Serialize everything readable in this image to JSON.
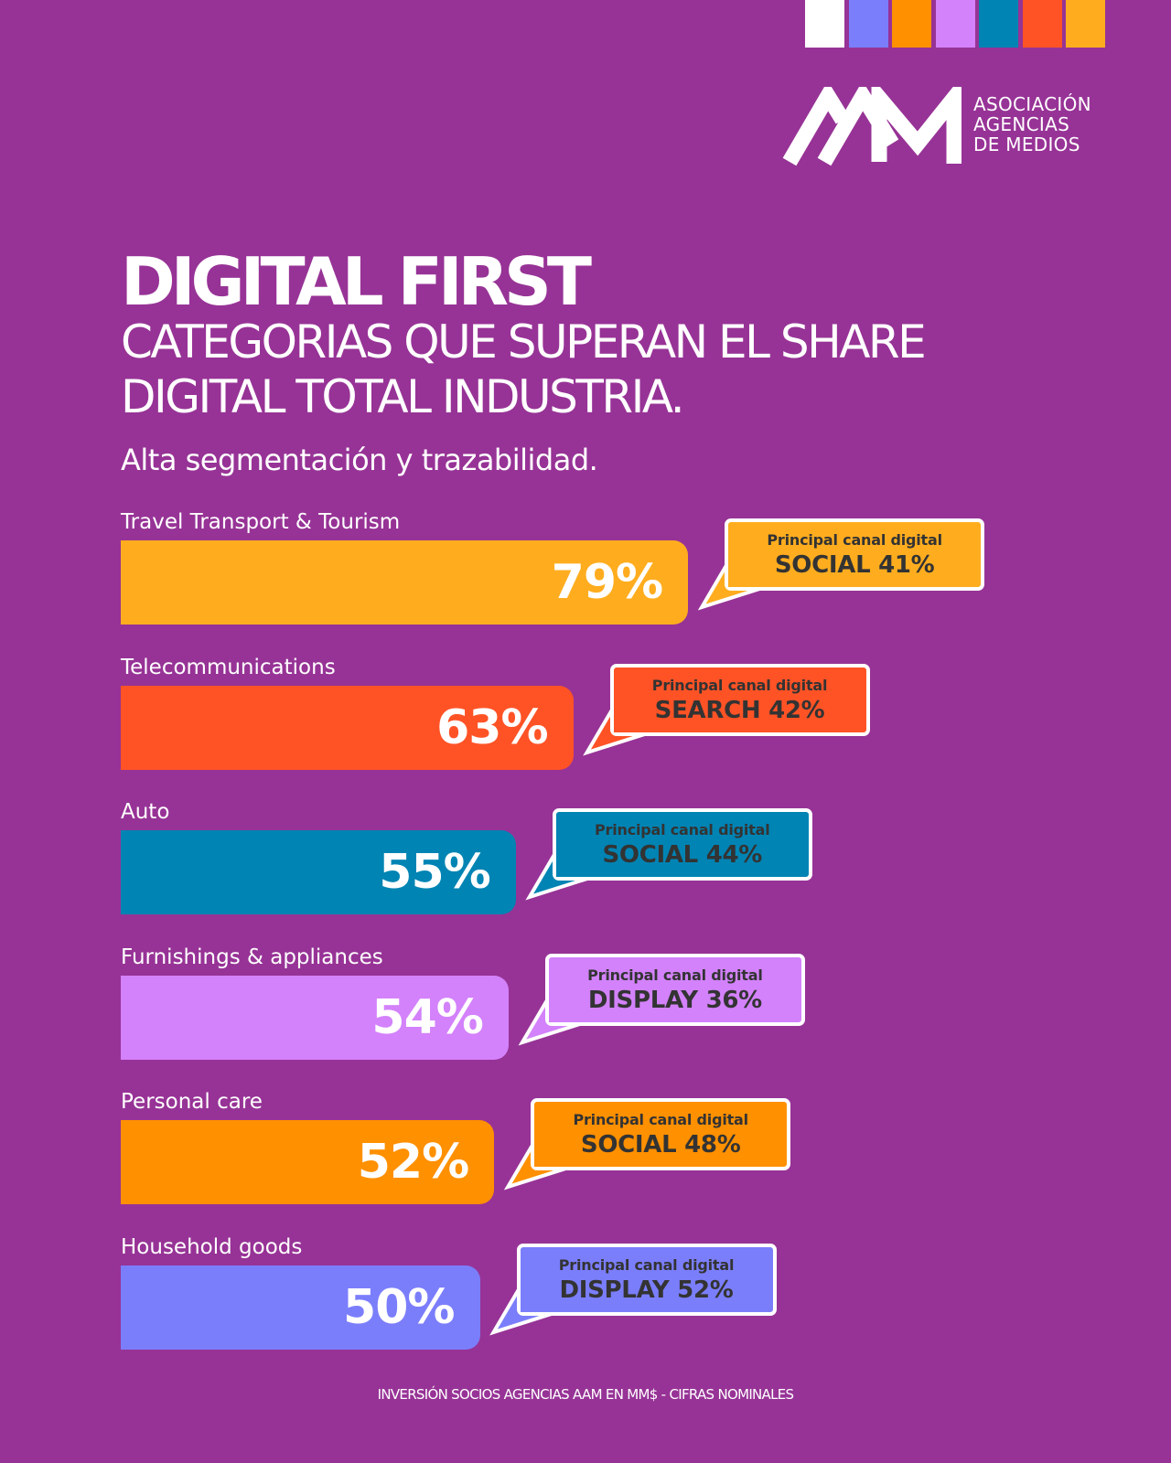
{
  "palette": {
    "background": "#973396",
    "top_swatches": [
      "#ffffff",
      "#7b7efb",
      "#ff9000",
      "#d382fb",
      "#0084b4",
      "#ff5326",
      "#ffad1f"
    ]
  },
  "logo": {
    "text_lines": [
      "ASOCIACIÓN",
      "AGENCIAS",
      "DE MEDIOS"
    ],
    "icon": "aam-monogram-logo"
  },
  "header": {
    "title": "DIGITAL FIRST",
    "subtitle": "CATEGORIAS QUE SUPERAN EL SHARE DIGITAL TOTAL INDUSTRIA.",
    "tagline": "Alta segmentación y trazabilidad."
  },
  "chart_data": {
    "type": "bar",
    "orientation": "horizontal",
    "categories": [
      "Travel Transport & Tourism",
      "Telecommunications",
      "Auto",
      "Furnishings & appliances",
      "Personal care",
      "Household goods"
    ],
    "values": [
      79,
      63,
      55,
      54,
      52,
      50
    ],
    "value_labels": [
      "79%",
      "63%",
      "55%",
      "54%",
      "52%",
      "50%"
    ],
    "unit": "%",
    "colors": [
      "#ffad1f",
      "#ff5326",
      "#0084b4",
      "#d382fb",
      "#ff9000",
      "#7b7efb"
    ],
    "callouts": [
      {
        "heading": "Principal canal digital",
        "text": "SOCIAL 41%",
        "channel": "SOCIAL",
        "share": 41
      },
      {
        "heading": "Principal canal digital",
        "text": "SEARCH 42%",
        "channel": "SEARCH",
        "share": 42
      },
      {
        "heading": "Principal canal digital",
        "text": "SOCIAL 44%",
        "channel": "SOCIAL",
        "share": 44
      },
      {
        "heading": "Principal canal digital",
        "text": "DISPLAY 36%",
        "channel": "DISPLAY",
        "share": 36
      },
      {
        "heading": "Principal canal digital",
        "text": "SOCIAL 48%",
        "channel": "SOCIAL",
        "share": 48
      },
      {
        "heading": "Principal canal digital",
        "text": "DISPLAY 52%",
        "channel": "DISPLAY",
        "share": 52
      }
    ],
    "grid": false,
    "legend": "none"
  },
  "footnote": "INVERSIÓN SOCIOS AGENCIAS AAM EN MM$ - CIFRAS NOMINALES"
}
